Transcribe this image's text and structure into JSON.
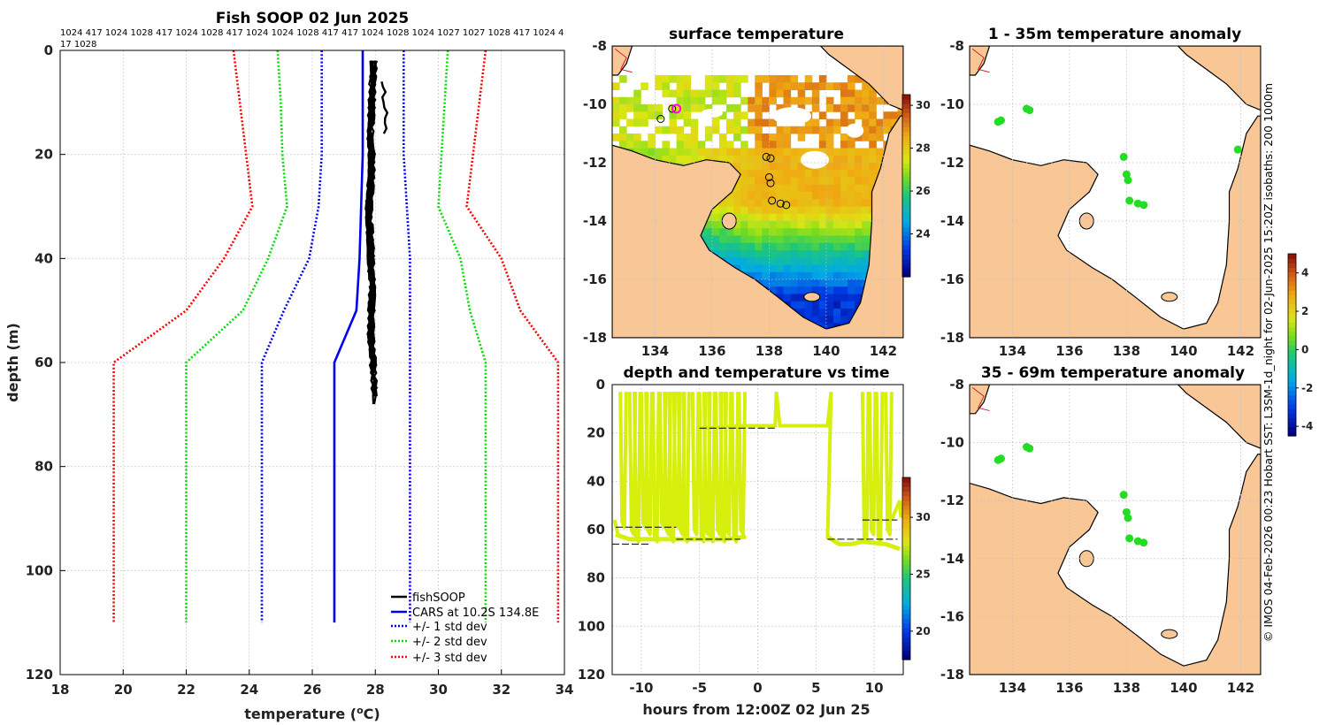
{
  "chart_data": [
    {
      "type": "line",
      "title": "Fish SOOP 02 Jun 2025",
      "xlabel": "temperature (°C)",
      "ylabel": "depth (m)",
      "xlim": [
        18,
        34
      ],
      "ylim": [
        0,
        120
      ],
      "y_reversed": true,
      "xticks": [
        18,
        20,
        22,
        24,
        26,
        28,
        30,
        32,
        34
      ],
      "yticks": [
        0,
        20,
        40,
        60,
        80,
        100,
        120
      ],
      "header_line1": "1024 417 1024 1028 417 1024 1028 417 1024 1024 1028 417 417 1024 1028 1024 1027 1027 1028 417 1024 4",
      "header_line2": "17 1028",
      "series": [
        {
          "name": "CARS at 10.2S 134.8E",
          "style": "solid",
          "color": "#0000ee",
          "temp": [
            27.6,
            27.6,
            27.6,
            27.55,
            27.5,
            27.4,
            26.7,
            26.7,
            26.7
          ],
          "depth": [
            0,
            10,
            20,
            30,
            40,
            50,
            60,
            80,
            110
          ]
        },
        {
          "name": "-1 std dev",
          "style": "dotted",
          "color": "#0000ee",
          "temp": [
            26.3,
            26.3,
            26.3,
            26.2,
            25.9,
            25.1,
            24.4,
            24.4,
            24.4
          ],
          "depth": [
            0,
            10,
            20,
            30,
            40,
            50,
            60,
            80,
            110
          ]
        },
        {
          "name": "+1 std dev",
          "style": "dotted",
          "color": "#0000ee",
          "temp": [
            28.9,
            28.9,
            28.9,
            29.0,
            29.1,
            29.1,
            29.1,
            29.1,
            29.1
          ],
          "depth": [
            0,
            10,
            20,
            30,
            40,
            50,
            60,
            80,
            110
          ]
        },
        {
          "name": "-2 std dev",
          "style": "dotted",
          "color": "#00dd00",
          "temp": [
            24.9,
            25.0,
            25.05,
            25.2,
            24.6,
            23.8,
            22.0,
            22.0,
            22.0
          ],
          "depth": [
            0,
            10,
            20,
            30,
            40,
            50,
            60,
            80,
            110
          ]
        },
        {
          "name": "+2 std dev",
          "style": "dotted",
          "color": "#00dd00",
          "temp": [
            30.3,
            30.2,
            30.1,
            30.0,
            30.7,
            31.0,
            31.5,
            31.5,
            31.5
          ],
          "depth": [
            0,
            10,
            20,
            30,
            40,
            50,
            60,
            80,
            110
          ]
        },
        {
          "name": "-3 std dev",
          "style": "dotted",
          "color": "#ff0000",
          "temp": [
            23.5,
            23.7,
            23.9,
            24.1,
            23.2,
            22.0,
            19.7,
            19.7,
            19.7
          ],
          "depth": [
            0,
            10,
            20,
            30,
            40,
            50,
            60,
            80,
            110
          ]
        },
        {
          "name": "+3 std dev",
          "style": "dotted",
          "color": "#ff0000",
          "temp": [
            31.5,
            31.3,
            31.1,
            30.9,
            32.0,
            32.6,
            33.8,
            33.8,
            33.8
          ],
          "depth": [
            0,
            10,
            20,
            30,
            40,
            50,
            60,
            80,
            110
          ]
        },
        {
          "name": "fishSOOP",
          "style": "solid",
          "color": "#000000",
          "temp": [
            27.95,
            27.9,
            27.85,
            27.9,
            27.8,
            27.85,
            27.9,
            27.85,
            27.95,
            28.0
          ],
          "depth": [
            2,
            8,
            16,
            22,
            30,
            38,
            46,
            54,
            62,
            69
          ]
        }
      ],
      "legend": [
        "fishSOOP",
        "CARS at 10.2S 134.8E",
        "+/- 1 std dev",
        "+/- 2 std dev",
        "+/- 3 std dev"
      ],
      "legend_position": "bottom-right"
    },
    {
      "type": "heatmap",
      "title": "surface temperature",
      "xlim": [
        132.5,
        142.7
      ],
      "ylim": [
        -18,
        -8
      ],
      "xticks": [
        134,
        136,
        138,
        140,
        142
      ],
      "yticks": [
        -8,
        -10,
        -12,
        -14,
        -16,
        -18
      ],
      "colorbar": {
        "ticks": [
          24,
          26,
          28,
          30
        ],
        "range": [
          22,
          30.5
        ]
      },
      "stations": [
        [
          134.2,
          -10.5
        ],
        [
          134.6,
          -10.15
        ],
        [
          137.9,
          -11.8
        ],
        [
          138.05,
          -11.85
        ],
        [
          138.0,
          -12.5
        ],
        [
          138.05,
          -12.7
        ],
        [
          138.1,
          -13.3
        ],
        [
          138.4,
          -13.4
        ],
        [
          138.6,
          -13.45
        ]
      ],
      "highlight_station": [
        134.75,
        -10.15
      ]
    },
    {
      "type": "scatter",
      "title": "depth and temperature vs time",
      "xlabel": "hours from 12:00Z 02 Jun 25",
      "xlim": [
        -12.5,
        12.5
      ],
      "ylim": [
        0,
        120
      ],
      "y_reversed": true,
      "xticks": [
        -10,
        -5,
        0,
        5,
        10
      ],
      "yticks": [
        0,
        20,
        40,
        60,
        80,
        100,
        120
      ],
      "colorbar": {
        "ticks": [
          20,
          25,
          30
        ],
        "range": [
          17.5,
          33.5
        ]
      },
      "points_color": "#d6ef0d"
    },
    {
      "type": "scatter",
      "title": "1 - 35m temperature anomaly",
      "xlim": [
        132.5,
        142.7
      ],
      "ylim": [
        -18,
        -8
      ],
      "xticks": [
        134,
        136,
        138,
        140,
        142
      ],
      "yticks": [
        -8,
        -10,
        -12,
        -14,
        -16,
        -18
      ],
      "points": [
        [
          133.5,
          -10.6
        ],
        [
          133.6,
          -10.55
        ],
        [
          134.5,
          -10.15
        ],
        [
          134.6,
          -10.2
        ],
        [
          137.9,
          -11.8
        ],
        [
          138.0,
          -12.4
        ],
        [
          138.05,
          -12.6
        ],
        [
          138.1,
          -13.3
        ],
        [
          138.4,
          -13.4
        ],
        [
          138.6,
          -13.45
        ],
        [
          141.9,
          -11.55
        ]
      ]
    },
    {
      "type": "scatter",
      "title": "35 - 69m temperature anomaly",
      "xlim": [
        132.5,
        142.7
      ],
      "ylim": [
        -18,
        -8
      ],
      "xticks": [
        134,
        136,
        138,
        140,
        142
      ],
      "yticks": [
        -8,
        -10,
        -12,
        -14,
        -16,
        -18
      ],
      "points": [
        [
          133.5,
          -10.6
        ],
        [
          133.6,
          -10.55
        ],
        [
          134.5,
          -10.15
        ],
        [
          134.6,
          -10.2
        ],
        [
          137.9,
          -11.8
        ],
        [
          138.0,
          -12.4
        ],
        [
          138.05,
          -12.6
        ],
        [
          138.1,
          -13.3
        ],
        [
          138.4,
          -13.4
        ],
        [
          138.6,
          -13.45
        ]
      ]
    }
  ],
  "anomaly_colorbar": {
    "ticks": [
      -4,
      -2,
      0,
      2,
      4
    ],
    "range": [
      -4.5,
      5
    ]
  },
  "side_note": "© IMOS 04-Feb-2026 00:23 Hobart SST: L3SM-1d_night for 02-Jun-2025 15:20Z isobaths: 200  1000m",
  "colors": {
    "land": "#f9c795",
    "ocean_bg": "#ffffff",
    "coast": "#000000",
    "river": "#cc0000",
    "anomaly_point": "#22dd22"
  }
}
